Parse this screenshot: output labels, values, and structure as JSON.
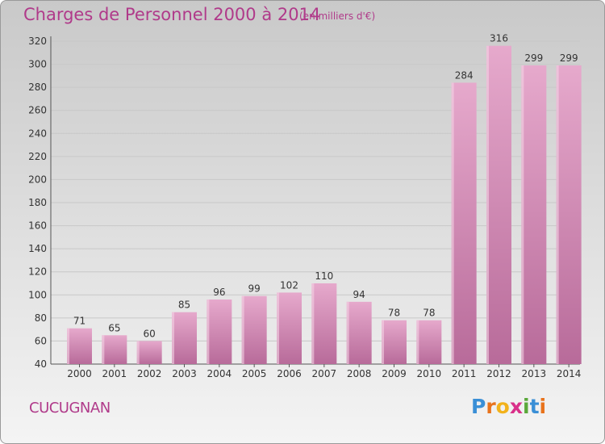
{
  "header": {
    "title": "Charges de Personnel 2000 à 2014",
    "subtitle": "(en milliers d'€)"
  },
  "footer": {
    "place": "CUCUGNAN",
    "logo_letters": [
      "P",
      "r",
      "o",
      "x",
      "i",
      "t",
      "i"
    ],
    "logo_colors": [
      "#3a8fd6",
      "#e8731c",
      "#f2b21b",
      "#d9308a",
      "#5aa83a",
      "#3a8fd6",
      "#e8731c"
    ]
  },
  "colors": {
    "bar_light": "#e6a9cc",
    "bar_dark": "#b86b9a",
    "title": "#b03a8a",
    "grid": "#c8c8c8"
  },
  "chart_data": {
    "type": "bar",
    "title": "Charges de Personnel 2000 à 2014",
    "subtitle": "(en milliers d'€)",
    "categories": [
      "2000",
      "2001",
      "2002",
      "2003",
      "2004",
      "2005",
      "2006",
      "2007",
      "2008",
      "2009",
      "2010",
      "2011",
      "2012",
      "2013",
      "2014"
    ],
    "values": [
      71,
      65,
      60,
      85,
      96,
      99,
      102,
      110,
      94,
      78,
      78,
      284,
      316,
      299,
      299
    ],
    "ylim": [
      40,
      320
    ],
    "yticks": [
      40,
      60,
      80,
      100,
      120,
      140,
      160,
      180,
      200,
      220,
      240,
      260,
      280,
      300,
      320
    ],
    "grid": true,
    "legend": "none"
  }
}
